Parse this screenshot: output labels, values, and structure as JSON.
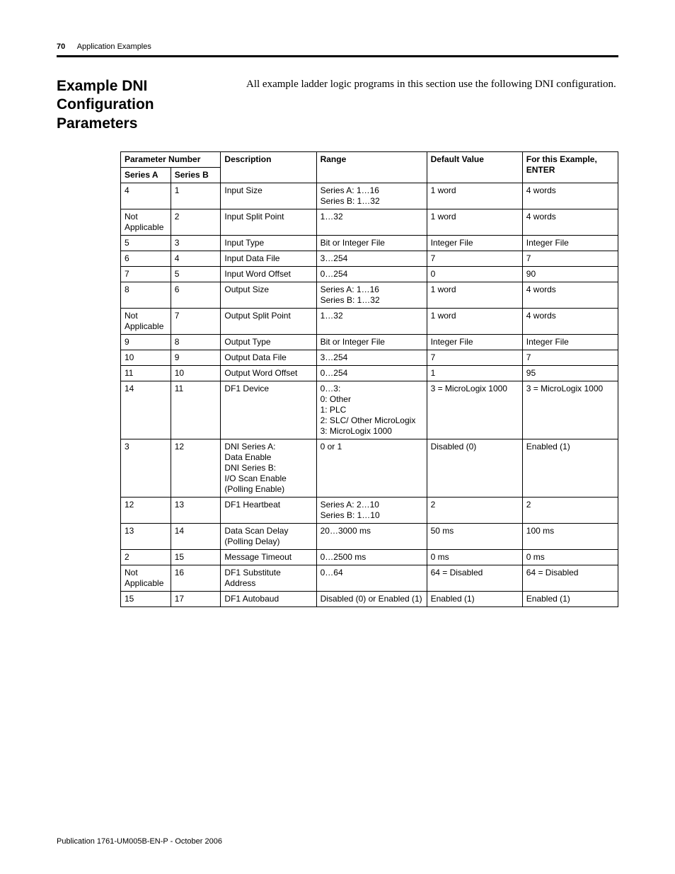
{
  "header": {
    "page_number": "70",
    "section": "Application Examples"
  },
  "title": "Example DNI Configuration Parameters",
  "intro": "All example ladder logic programs in this section use the following DNI configuration.",
  "table": {
    "head": {
      "param_number": "Parameter Number",
      "series_a": "Series A",
      "series_b": "Series B",
      "description": "Description",
      "range": "Range",
      "default": "Default Value",
      "enter": "For this Example, ENTER"
    },
    "rows": [
      {
        "a": "4",
        "b": "1",
        "desc": "Input Size",
        "range": "Series A: 1…16\nSeries B: 1…32",
        "def": "1 word",
        "enter": "4 words"
      },
      {
        "a": "Not Applicable",
        "b": "2",
        "desc": "Input Split Point",
        "range": "1…32",
        "def": "1 word",
        "enter": "4 words"
      },
      {
        "a": "5",
        "b": "3",
        "desc": "Input Type",
        "range": "Bit or Integer File",
        "def": "Integer File",
        "enter": "Integer File"
      },
      {
        "a": "6",
        "b": "4",
        "desc": "Input Data File",
        "range": "3…254",
        "def": "7",
        "enter": "7"
      },
      {
        "a": "7",
        "b": "5",
        "desc": "Input Word Offset",
        "range": "0…254",
        "def": "0",
        "enter": "90"
      },
      {
        "a": "8",
        "b": "6",
        "desc": "Output Size",
        "range": "Series A: 1…16\nSeries B: 1…32",
        "def": "1 word",
        "enter": "4 words"
      },
      {
        "a": "Not Applicable",
        "b": "7",
        "desc": "Output Split Point",
        "range": "1…32",
        "def": "1 word",
        "enter": "4 words"
      },
      {
        "a": "9",
        "b": "8",
        "desc": "Output Type",
        "range": "Bit or Integer File",
        "def": "Integer File",
        "enter": "Integer File"
      },
      {
        "a": "10",
        "b": "9",
        "desc": "Output Data File",
        "range": "3…254",
        "def": "7",
        "enter": "7"
      },
      {
        "a": "11",
        "b": "10",
        "desc": "Output Word Offset",
        "range": "0…254",
        "def": "1",
        "enter": "95"
      },
      {
        "a": "14",
        "b": "11",
        "desc": "DF1 Device",
        "range": "0…3:\n0: Other\n1: PLC\n2: SLC/ Other MicroLogix\n3: MicroLogix 1000",
        "def": "3 = MicroLogix 1000",
        "enter": "3 = MicroLogix 1000"
      },
      {
        "a": "3",
        "b": "12",
        "desc": "DNI Series A:\nData Enable\nDNI Series B:\nI/O Scan Enable (Polling Enable)",
        "range": "0 or 1",
        "def": "Disabled (0)",
        "enter": "Enabled (1)"
      },
      {
        "a": "12",
        "b": "13",
        "desc": "DF1 Heartbeat",
        "range": "Series A: 2…10\nSeries B: 1…10",
        "def": "2",
        "enter": "2"
      },
      {
        "a": "13",
        "b": "14",
        "desc": "Data Scan Delay (Polling Delay)",
        "range": "20…3000 ms",
        "def": "50 ms",
        "enter": "100 ms"
      },
      {
        "a": "2",
        "b": "15",
        "desc": "Message Timeout",
        "range": "0…2500 ms",
        "def": "0 ms",
        "enter": "0 ms"
      },
      {
        "a": "Not Applicable",
        "b": "16",
        "desc": "DF1 Substitute Address",
        "range": "0…64",
        "def": "64 = Disabled",
        "enter": "64 = Disabled"
      },
      {
        "a": "15",
        "b": "17",
        "desc": "DF1 Autobaud",
        "range": "Disabled (0) or Enabled (1)",
        "def": "Enabled (1)",
        "enter": "Enabled (1)"
      }
    ]
  },
  "footer": "Publication 1761-UM005B-EN-P - October 2006"
}
